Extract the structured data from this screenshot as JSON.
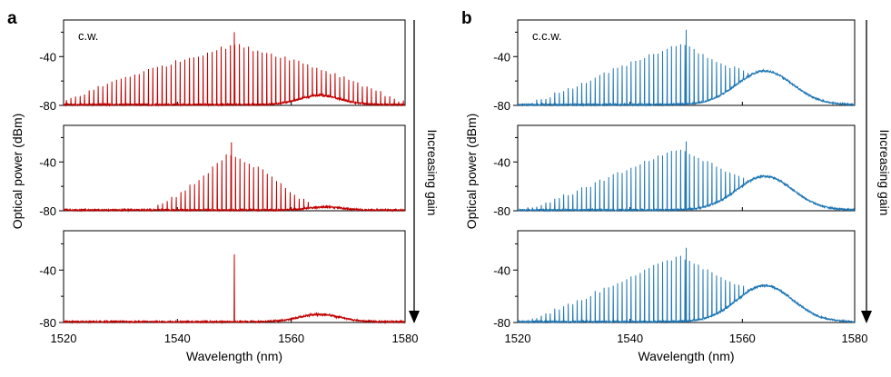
{
  "chart_data": [
    {
      "type": "line",
      "panel": "a",
      "annotation": "c.w.",
      "arrow_label": "Increasing gain",
      "xlabel": "Wavelength (nm)",
      "ylabel": "Optical power (dBm)",
      "xlim": [
        1520,
        1580
      ],
      "ylim": [
        -80,
        -10
      ],
      "xticks": [
        1520,
        1540,
        1560,
        1580
      ],
      "yticks": [
        -40,
        -80
      ],
      "color": "#c00000",
      "subplots": [
        {
          "name": "",
          "noise_floor": -80,
          "comb": {
            "start": 1520.5,
            "end": 1580,
            "spacing": 0.8
          },
          "comb_envelope": [
            [
              1520,
              -77
            ],
            [
              1530,
              -58
            ],
            [
              1540,
              -44
            ],
            [
              1550,
              -30
            ],
            [
              1560,
              -42
            ],
            [
              1570,
              -58
            ],
            [
              1580,
              -78
            ]
          ],
          "peak": {
            "x": 1550,
            "y": -20
          },
          "hump": {
            "center": 1565,
            "width": 5,
            "height": 7
          }
        },
        {
          "name": "",
          "noise_floor": -80,
          "comb": {
            "start": 1535,
            "end": 1565,
            "spacing": 0.8
          },
          "comb_envelope": [
            [
              1535,
              -80
            ],
            [
              1540,
              -67
            ],
            [
              1545,
              -50
            ],
            [
              1549,
              -33
            ],
            [
              1555,
              -47
            ],
            [
              1560,
              -65
            ],
            [
              1565,
              -80
            ]
          ],
          "peak": {
            "x": 1549.5,
            "y": -24
          },
          "hump": {
            "center": 1566,
            "width": 4,
            "height": 2
          }
        },
        {
          "name": "",
          "noise_floor": -80,
          "comb": null,
          "comb_envelope": [],
          "peak": {
            "x": 1550,
            "y": -28
          },
          "hump": {
            "center": 1565,
            "width": 5,
            "height": 5
          }
        }
      ]
    },
    {
      "type": "line",
      "panel": "b",
      "annotation": "c.c.w.",
      "arrow_label": "Increasing gain",
      "xlabel": "Wavelength (nm)",
      "ylabel": "Optical power (dBm)",
      "xlim": [
        1520,
        1580
      ],
      "ylim": [
        -80,
        -10
      ],
      "xticks": [
        1520,
        1540,
        1560,
        1580
      ],
      "yticks": [
        -40,
        -80
      ],
      "color": "#1f77b4",
      "subplots": [
        {
          "name": "",
          "noise_floor": -80,
          "comb": {
            "start": 1521,
            "end": 1568,
            "spacing": 0.8
          },
          "comb_envelope": [
            [
              1521,
              -80
            ],
            [
              1530,
              -65
            ],
            [
              1540,
              -45
            ],
            [
              1549,
              -29
            ],
            [
              1556,
              -45
            ],
            [
              1562,
              -55
            ],
            [
              1568,
              -60
            ]
          ],
          "peak": {
            "x": 1550,
            "y": -18
          },
          "hump": {
            "center": 1564,
            "width": 7,
            "height": 27
          }
        },
        {
          "name": "",
          "noise_floor": -80,
          "comb": {
            "start": 1521,
            "end": 1568,
            "spacing": 0.8
          },
          "comb_envelope": [
            [
              1521,
              -80
            ],
            [
              1530,
              -65
            ],
            [
              1540,
              -45
            ],
            [
              1549,
              -29
            ],
            [
              1556,
              -45
            ],
            [
              1562,
              -55
            ],
            [
              1568,
              -60
            ]
          ],
          "peak": {
            "x": 1550,
            "y": -23
          },
          "hump": {
            "center": 1564,
            "width": 7,
            "height": 27
          }
        },
        {
          "name": "",
          "noise_floor": -80,
          "comb": {
            "start": 1521,
            "end": 1568,
            "spacing": 0.8
          },
          "comb_envelope": [
            [
              1521,
              -80
            ],
            [
              1530,
              -65
            ],
            [
              1540,
              -45
            ],
            [
              1549,
              -29
            ],
            [
              1556,
              -45
            ],
            [
              1562,
              -55
            ],
            [
              1568,
              -60
            ]
          ],
          "peak": {
            "x": 1550,
            "y": -23
          },
          "hump": {
            "center": 1564,
            "width": 7,
            "height": 27
          }
        }
      ]
    }
  ]
}
